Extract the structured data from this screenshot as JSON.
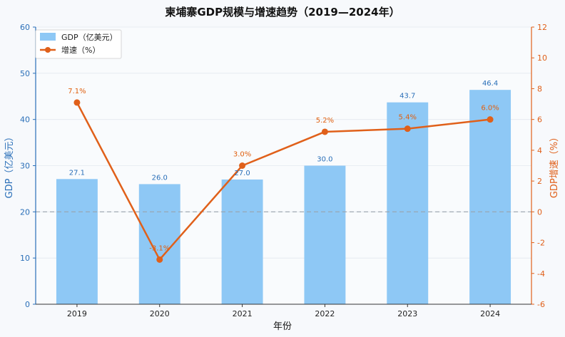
{
  "chart_data": {
    "type": "bar+line",
    "title": "柬埔寨GDP规模与增速趋势（2019—2024年）",
    "xlabel": "年份",
    "ylabel_left": "GDP（亿美元）",
    "ylabel_right": "GDP增速（%）",
    "categories": [
      "2019",
      "2020",
      "2021",
      "2022",
      "2023",
      "2024"
    ],
    "series": [
      {
        "name": "GDP（亿美元）",
        "type": "bar",
        "axis": "left",
        "values": [
          27.1,
          26.0,
          27.0,
          30.0,
          43.7,
          46.4
        ],
        "labels": [
          "27.1",
          "26.0",
          "27.0",
          "30.0",
          "43.7",
          "46.4"
        ],
        "color": "#8ec8f5"
      },
      {
        "name": "增速（%）",
        "type": "line",
        "axis": "right",
        "values": [
          7.1,
          -3.1,
          3.0,
          5.2,
          5.4,
          6.0
        ],
        "labels": [
          "7.1%",
          "-3.1%",
          "3.0%",
          "5.2%",
          "5.4%",
          "6.0%"
        ],
        "color": "#e0601a"
      }
    ],
    "ylim_left": [
      0,
      60
    ],
    "ylim_right": [
      -6,
      12
    ],
    "yticks_left": [
      "0",
      "10",
      "20",
      "30",
      "40",
      "50",
      "60"
    ],
    "yticks_right": [
      "-6",
      "-4",
      "-2",
      "0",
      "2",
      "4",
      "6",
      "8",
      "10",
      "12"
    ],
    "reference_line": {
      "axis": "right",
      "value": 0,
      "style": "dashed"
    },
    "grid": "horizontal",
    "legend": "top-left",
    "colors": {
      "left_axis": "#2a6fb8",
      "right_axis": "#e0601a",
      "bar": "#8ec8f5",
      "line": "#e0601a"
    }
  }
}
